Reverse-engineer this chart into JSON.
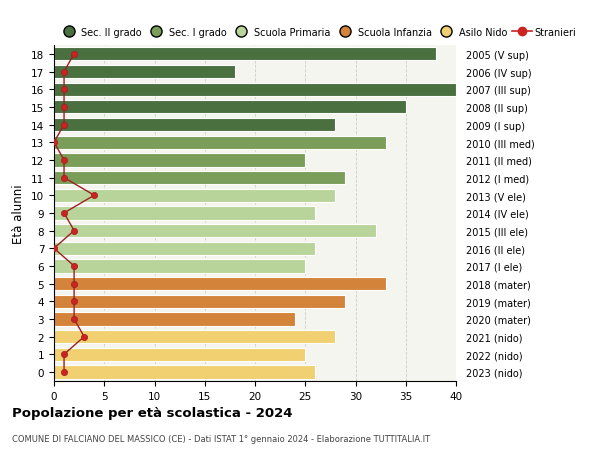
{
  "ages": [
    18,
    17,
    16,
    15,
    14,
    13,
    12,
    11,
    10,
    9,
    8,
    7,
    6,
    5,
    4,
    3,
    2,
    1,
    0
  ],
  "bar_values": [
    38,
    18,
    40,
    35,
    28,
    33,
    25,
    29,
    28,
    26,
    32,
    26,
    25,
    33,
    29,
    24,
    28,
    25,
    26
  ],
  "bar_colors": [
    "#4a7040",
    "#4a7040",
    "#4a7040",
    "#4a7040",
    "#4a7040",
    "#7a9e5a",
    "#7a9e5a",
    "#7a9e5a",
    "#b8d49a",
    "#b8d49a",
    "#b8d49a",
    "#b8d49a",
    "#b8d49a",
    "#d4843a",
    "#d4843a",
    "#d4843a",
    "#f0d070",
    "#f0d070",
    "#f0d070"
  ],
  "stranieri_values": [
    2,
    1,
    1,
    1,
    1,
    0,
    1,
    1,
    4,
    1,
    2,
    0,
    2,
    2,
    2,
    2,
    3,
    1,
    1
  ],
  "right_labels": [
    "2005 (V sup)",
    "2006 (IV sup)",
    "2007 (III sup)",
    "2008 (II sup)",
    "2009 (I sup)",
    "2010 (III med)",
    "2011 (II med)",
    "2012 (I med)",
    "2013 (V ele)",
    "2014 (IV ele)",
    "2015 (III ele)",
    "2016 (II ele)",
    "2017 (I ele)",
    "2018 (mater)",
    "2019 (mater)",
    "2020 (mater)",
    "2021 (nido)",
    "2022 (nido)",
    "2023 (nido)"
  ],
  "legend_labels": [
    "Sec. II grado",
    "Sec. I grado",
    "Scuola Primaria",
    "Scuola Infanzia",
    "Asilo Nido",
    "Stranieri"
  ],
  "legend_colors": [
    "#4a7040",
    "#7a9e5a",
    "#b8d49a",
    "#d4843a",
    "#f0d070",
    "#cc2222"
  ],
  "ylabel": "Età alunni",
  "title": "Popolazione per età scolastica - 2024",
  "subtitle": "COMUNE DI FALCIANO DEL MASSICO (CE) - Dati ISTAT 1° gennaio 2024 - Elaborazione TUTTITALIA.IT",
  "xlim": [
    0,
    40
  ],
  "plot_bg_color": "#f5f5f0",
  "background_color": "#ffffff",
  "grid_color": "#cccccc",
  "bar_height": 0.75
}
